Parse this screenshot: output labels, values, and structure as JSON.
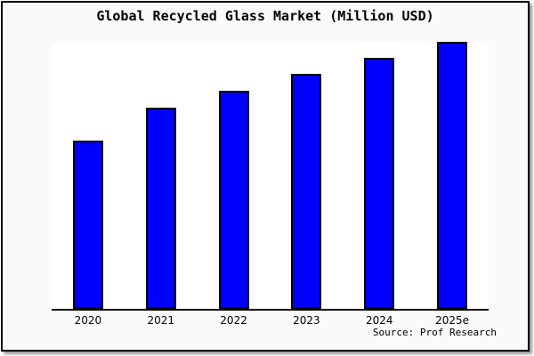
{
  "title": "Global Recycled Glass Market (Million USD)",
  "source_credit": "Source: Prof Research",
  "colors": {
    "bar_fill": "#0000ff",
    "bar_border": "#000000",
    "plot_background": "#ffffff",
    "frame_background": "#fafafa",
    "axis_line": "#000000",
    "frame_border": "#000000",
    "drop_shadow": "#9a9a9a"
  },
  "chart_data": {
    "type": "bar",
    "title": "Global Recycled Glass Market (Million USD)",
    "categories": [
      "2020",
      "2021",
      "2022",
      "2023",
      "2024",
      "2025e"
    ],
    "values": [
      63,
      75.33,
      81.67,
      88,
      94,
      100
    ],
    "value_note": "No y-axis or data labels are shown in the chart; values are estimated relative bar heights with 2025e normalized to 100.",
    "xlabel": "",
    "ylabel": "",
    "ylim": [
      0,
      100
    ],
    "grid": false,
    "legend": "none",
    "annotations": [
      "Source: Prof Research"
    ]
  }
}
